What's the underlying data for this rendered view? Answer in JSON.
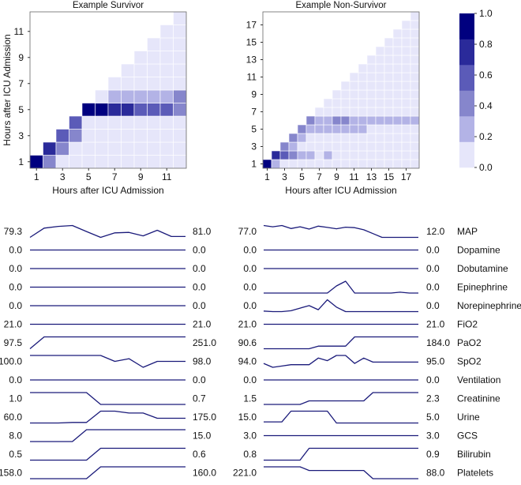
{
  "chart_data": [
    {
      "type": "heatmap",
      "title": "Example Survivor",
      "xlabel": "Hours after ICU Admission",
      "ylabel": "Hours after ICU Admission",
      "size": 12,
      "x_ticks": [
        "1",
        "3",
        "5",
        "7",
        "9",
        "11"
      ],
      "y_ticks": [
        "1",
        "3",
        "5",
        "7",
        "9",
        "11"
      ],
      "note": "rows[y] lists values for columns x = y..size; missing trailing cells are 0.0; cells with y > x are empty",
      "rows": {
        "1": [
          0.95,
          0.4,
          0.05
        ],
        "2": [
          0.75,
          0.4,
          0.05
        ],
        "3": [
          0.6,
          0.4,
          0.05
        ],
        "4": [
          0.6,
          0.05
        ],
        "5": [
          0.95,
          0.95,
          0.75,
          0.75,
          0.6,
          0.6,
          0.6,
          0.4
        ],
        "6": [
          0.05,
          0.25,
          0.25,
          0.25,
          0.25,
          0.25,
          0.4
        ]
      }
    },
    {
      "type": "heatmap",
      "title": "Example Non-Survivor",
      "xlabel": "Hours after ICU Admission",
      "ylabel": "",
      "size": 18,
      "x_ticks": [
        "1",
        "3",
        "5",
        "7",
        "9",
        "11",
        "13",
        "15",
        "17"
      ],
      "y_ticks": [
        "1",
        "3",
        "5",
        "7",
        "9",
        "11",
        "13",
        "15",
        "17"
      ],
      "note": "rows[y] lists values for columns x = y..size; missing trailing cells are 0.0; cells with y > x are empty",
      "rows": {
        "1": [
          0.95,
          0.25,
          0.05
        ],
        "2": [
          0.75,
          0.6,
          0.4,
          0.25,
          0.25,
          0.05,
          0.25,
          0.05
        ],
        "3": [
          0.4,
          0.25,
          0.05
        ],
        "4": [
          0.4,
          0.25,
          0.05
        ],
        "5": [
          0.4,
          0.25,
          0.25,
          0.25,
          0.25,
          0.25,
          0.25,
          0.25,
          0.05
        ],
        "6": [
          0.4,
          0.25,
          0.25,
          0.4,
          0.4,
          0.25,
          0.25,
          0.25,
          0.25,
          0.25,
          0.25,
          0.25,
          0.25
        ]
      }
    },
    {
      "type": "colorbar",
      "range": [
        0.0,
        1.0
      ],
      "bins": 6,
      "colors": [
        "#e6e6fa",
        "#b3b3e6",
        "#8686cc",
        "#5b5bb8",
        "#2a2a9a",
        "#00007f"
      ],
      "ticks": [
        "0.0",
        "0.2",
        "0.4",
        "0.6",
        "0.8",
        "1.0"
      ]
    },
    {
      "type": "line",
      "panel": "survivor",
      "line_color": "#1a1a7a",
      "note": "values normalized per variable (0 = min, 1 = max); start/end are printed first/last raw values",
      "series": [
        {
          "name": "MAP",
          "start": "79.3",
          "end": "81.0",
          "values": [
            0,
            0.78,
            0.93,
            1,
            0.49,
            0,
            0.38,
            0.42,
            0.13,
            0.6,
            0.07,
            0.07
          ]
        },
        {
          "name": "Dopamine",
          "start": "0.0",
          "end": "0.0",
          "values": null
        },
        {
          "name": "Dobutamine",
          "start": "0.0",
          "end": "0.0",
          "values": null
        },
        {
          "name": "Epinephrine",
          "start": "0.0",
          "end": "0.0",
          "values": null
        },
        {
          "name": "Norepinephrine",
          "start": "0.0",
          "end": "0.0",
          "values": null
        },
        {
          "name": "FiO2",
          "start": "21.0",
          "end": "21.0",
          "values": null
        },
        {
          "name": "PaO2",
          "start": "97.5",
          "end": "251.0",
          "values": [
            0,
            1,
            1,
            1,
            1,
            1,
            1,
            1,
            1,
            1,
            1,
            1
          ]
        },
        {
          "name": "SpO2",
          "start": "100.0",
          "end": "98.0",
          "values": [
            1,
            1,
            1,
            1,
            1,
            1,
            0.5,
            0.73,
            0,
            0.5,
            0.5,
            0.5
          ]
        },
        {
          "name": "Ventilation",
          "start": "0.0",
          "end": "0.0",
          "values": null
        },
        {
          "name": "Creatinine",
          "start": "1.0",
          "end": "0.7",
          "values": [
            1,
            1,
            1,
            1,
            1,
            0,
            0,
            0,
            0,
            0,
            0,
            0
          ]
        },
        {
          "name": "Urine",
          "start": "60.0",
          "end": "175.0",
          "values": [
            0,
            0,
            0,
            0.05,
            0.05,
            1,
            1,
            0.84,
            0.84,
            0.4,
            0.4,
            0.4
          ]
        },
        {
          "name": "GCS",
          "start": "8.0",
          "end": "15.0",
          "values": [
            0,
            0,
            0,
            0,
            1,
            1,
            1,
            1,
            1,
            1,
            1,
            1
          ]
        },
        {
          "name": "Bilirubin",
          "start": "0.5",
          "end": "0.6",
          "values": [
            0,
            0,
            0,
            0,
            0,
            1,
            1,
            1,
            1,
            1,
            1,
            1
          ]
        },
        {
          "name": "Platelets",
          "start": "158.0",
          "end": "160.0",
          "values": [
            0,
            0,
            0,
            0,
            0,
            1,
            1,
            1,
            1,
            1,
            1,
            1
          ]
        }
      ]
    },
    {
      "type": "line",
      "panel": "non-survivor",
      "line_color": "#1a1a7a",
      "note": "values normalized per variable (0 = min, 1 = max); start/end are printed first/last raw values",
      "series": [
        {
          "name": "MAP",
          "start": "77.0",
          "end": "12.0",
          "values": [
            1,
            0.89,
            1,
            0.75,
            0.89,
            0.7,
            0.95,
            0.84,
            0.73,
            0.86,
            0.82,
            0.64,
            0.32,
            0,
            0,
            0,
            0,
            0
          ]
        },
        {
          "name": "Dopamine",
          "start": "0.0",
          "end": "0.0",
          "values": null
        },
        {
          "name": "Dobutamine",
          "start": "0.0",
          "end": "0.0",
          "values": null
        },
        {
          "name": "Epinephrine",
          "start": "0.0",
          "end": "0.0",
          "values": [
            0,
            0,
            0,
            0,
            0,
            0,
            0,
            0,
            0.6,
            1,
            0,
            0,
            0,
            0,
            0,
            0.07,
            0,
            0
          ]
        },
        {
          "name": "Norepinephrine",
          "start": "0.0",
          "end": "0.0",
          "values": [
            0.05,
            0,
            0,
            0.07,
            0.29,
            0.51,
            0.16,
            1,
            0.38,
            0,
            0,
            0,
            0,
            0,
            0,
            0,
            0,
            0
          ]
        },
        {
          "name": "FiO2",
          "start": "21.0",
          "end": "21.0",
          "values": null
        },
        {
          "name": "PaO2",
          "start": "90.6",
          "end": "184.0",
          "values": [
            0,
            0,
            0,
            0,
            0,
            0,
            0.22,
            0.22,
            0.22,
            0.22,
            1,
            1,
            1,
            1,
            1,
            1,
            1,
            1
          ]
        },
        {
          "name": "SpO2",
          "start": "94.0",
          "end": "95.0",
          "values": [
            0.33,
            0,
            0.11,
            0.22,
            0.22,
            0.22,
            0.78,
            0.56,
            1,
            1,
            0.33,
            0.78,
            0.44,
            0.44,
            0.44,
            0.44,
            0.44,
            0.44
          ]
        },
        {
          "name": "Ventilation",
          "start": "0.0",
          "end": "0.0",
          "values": null
        },
        {
          "name": "Creatinine",
          "start": "1.5",
          "end": "2.3",
          "values": [
            0,
            0,
            0,
            0,
            0,
            0.3,
            0.3,
            0.3,
            0.3,
            0.3,
            0.3,
            0.3,
            1,
            1,
            1,
            1,
            1,
            1
          ]
        },
        {
          "name": "Urine",
          "start": "15.0",
          "end": "5.0",
          "values": [
            0.09,
            0.09,
            0.09,
            1,
            1,
            1,
            1,
            1,
            0,
            0,
            0,
            0,
            0,
            0,
            0,
            0,
            0,
            0
          ]
        },
        {
          "name": "GCS",
          "start": "3.0",
          "end": "3.0",
          "values": null
        },
        {
          "name": "Bilirubin",
          "start": "0.8",
          "end": "0.9",
          "values": [
            0,
            0,
            0,
            0,
            0,
            1,
            1,
            1,
            1,
            1,
            1,
            1,
            1,
            1,
            1,
            1,
            1,
            1
          ]
        },
        {
          "name": "Platelets",
          "start": "221.0",
          "end": "88.0",
          "values": [
            1,
            1,
            1,
            1,
            1,
            0.69,
            0.69,
            0.69,
            0.69,
            0.69,
            0.69,
            0.69,
            0,
            0,
            0,
            0,
            0,
            0
          ]
        }
      ]
    }
  ]
}
